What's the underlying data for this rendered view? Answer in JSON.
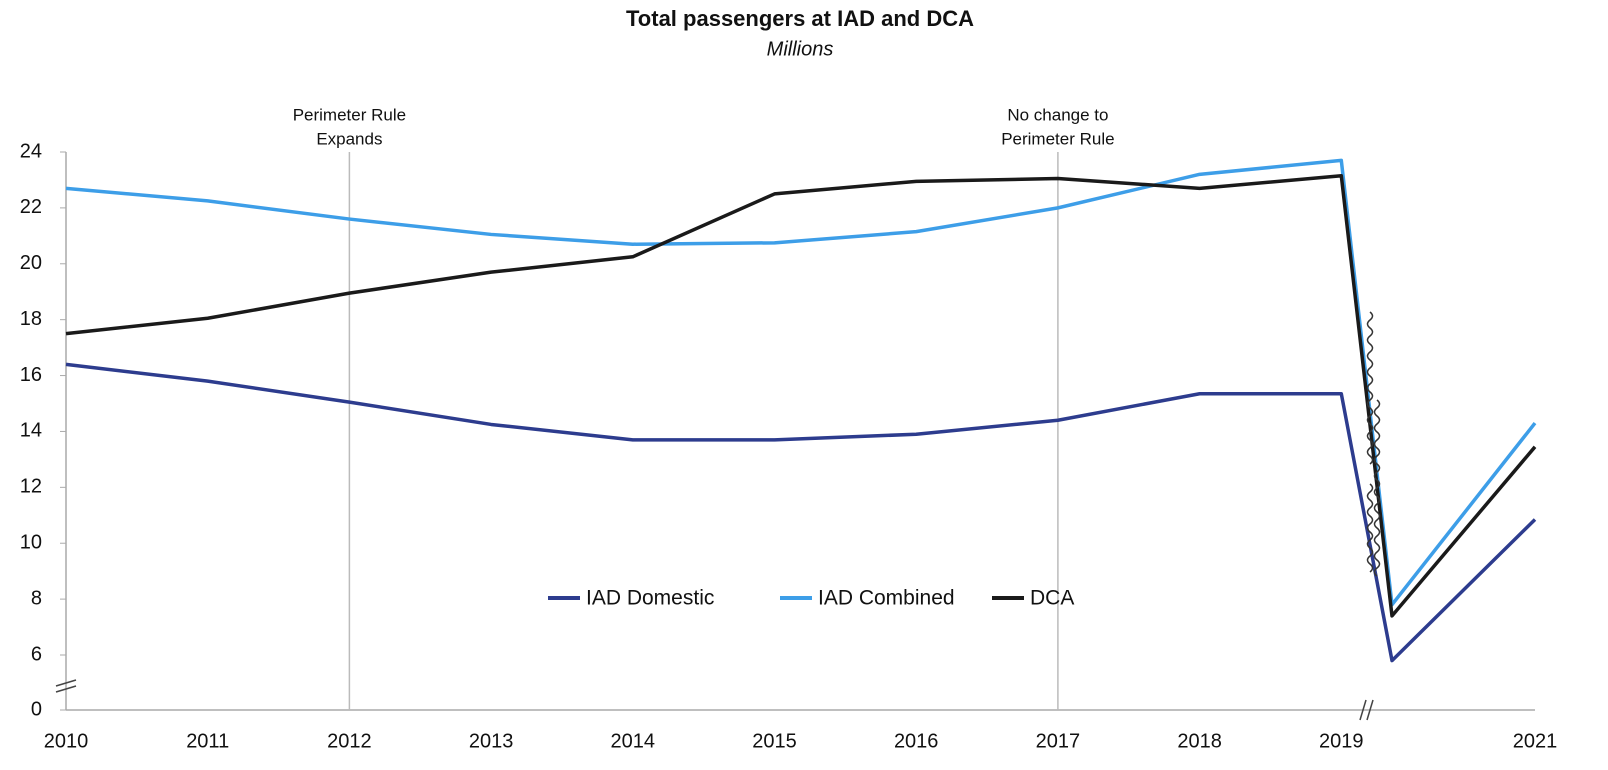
{
  "chart_data": {
    "type": "line",
    "title": "Total passengers at IAD and DCA",
    "subtitle": "Millions",
    "categories": [
      "2010",
      "2011",
      "2012",
      "2013",
      "2014",
      "2015",
      "2016",
      "2017",
      "2018",
      "2019",
      null,
      "2021"
    ],
    "series": [
      {
        "name": "IAD Domestic",
        "color": "#2d3c8e",
        "values": [
          16.4,
          15.8,
          15.05,
          14.25,
          13.7,
          13.7,
          13.9,
          14.4,
          15.35,
          15.35,
          5.8,
          10.85
        ]
      },
      {
        "name": "IAD Combined",
        "color": "#3d9ee8",
        "values": [
          22.7,
          22.25,
          21.6,
          21.05,
          20.7,
          20.75,
          21.15,
          22.0,
          23.2,
          23.7,
          7.8,
          14.3
        ]
      },
      {
        "name": "DCA",
        "color": "#1a1a1a",
        "values": [
          17.5,
          18.05,
          18.95,
          19.7,
          20.25,
          22.5,
          22.95,
          23.05,
          22.7,
          23.15,
          7.4,
          13.45
        ]
      }
    ],
    "ylim": [
      0,
      24
    ],
    "yticks": [
      0,
      6,
      8,
      10,
      12,
      14,
      16,
      18,
      20,
      22,
      24
    ],
    "annotations": [
      {
        "lines": [
          "Perimeter Rule",
          "Expands"
        ],
        "x": "2012"
      },
      {
        "lines": [
          "No change to",
          "Perimeter Rule"
        ],
        "x": "2017"
      }
    ],
    "legend": "center"
  }
}
